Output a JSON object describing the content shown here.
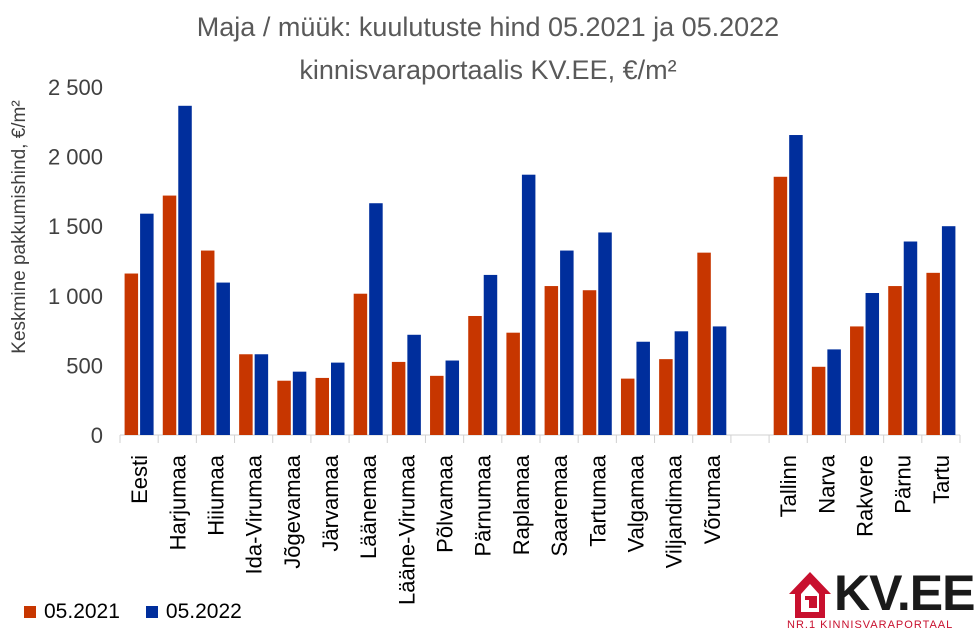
{
  "chart_data": {
    "type": "bar",
    "title": "Maja / müük: kuulutuste hind 05.2021 ja 05.2022",
    "subtitle": "kinnisvaraportaalis KV.EE, €/m²",
    "xlabel": "",
    "ylabel": "Keskmine pakkumishind, €/m²",
    "ylim": [
      0,
      2500
    ],
    "yticks": [
      0,
      500,
      1000,
      1500,
      2000,
      2500
    ],
    "ytick_labels": [
      "0",
      "500",
      "1 000",
      "1 500",
      "2 000",
      "2 500"
    ],
    "categories": [
      "Eesti",
      "Harjumaa",
      "Hiiumaa",
      "Ida-Virumaa",
      "Jõgevamaa",
      "Järvamaa",
      "Läänemaa",
      "Lääne-Virumaa",
      "Põlvamaa",
      "Pärnumaa",
      "Raplamaa",
      "Saaremaa",
      "Tartumaa",
      "Valgamaa",
      "Viljandimaa",
      "Võrumaa",
      "",
      "Tallinn",
      "Narva",
      "Rakvere",
      "Pärnu",
      "Tartu"
    ],
    "series": [
      {
        "name": "05.2021",
        "color": "#c73600",
        "values": [
          1160,
          1720,
          1325,
          580,
          390,
          410,
          1015,
          525,
          425,
          855,
          735,
          1070,
          1040,
          405,
          545,
          1310,
          null,
          1855,
          490,
          780,
          1070,
          1165
        ]
      },
      {
        "name": "05.2022",
        "color": "#002e9c",
        "values": [
          1590,
          2365,
          1095,
          580,
          455,
          520,
          1665,
          720,
          535,
          1150,
          1870,
          1325,
          1455,
          670,
          745,
          780,
          null,
          2155,
          615,
          1020,
          1390,
          1500
        ]
      }
    ],
    "grid": false,
    "legend": "bottom-left"
  },
  "logo": {
    "text": "KV.EE",
    "subtitle": "NR.1 KINNISVARAPORTAAL"
  }
}
